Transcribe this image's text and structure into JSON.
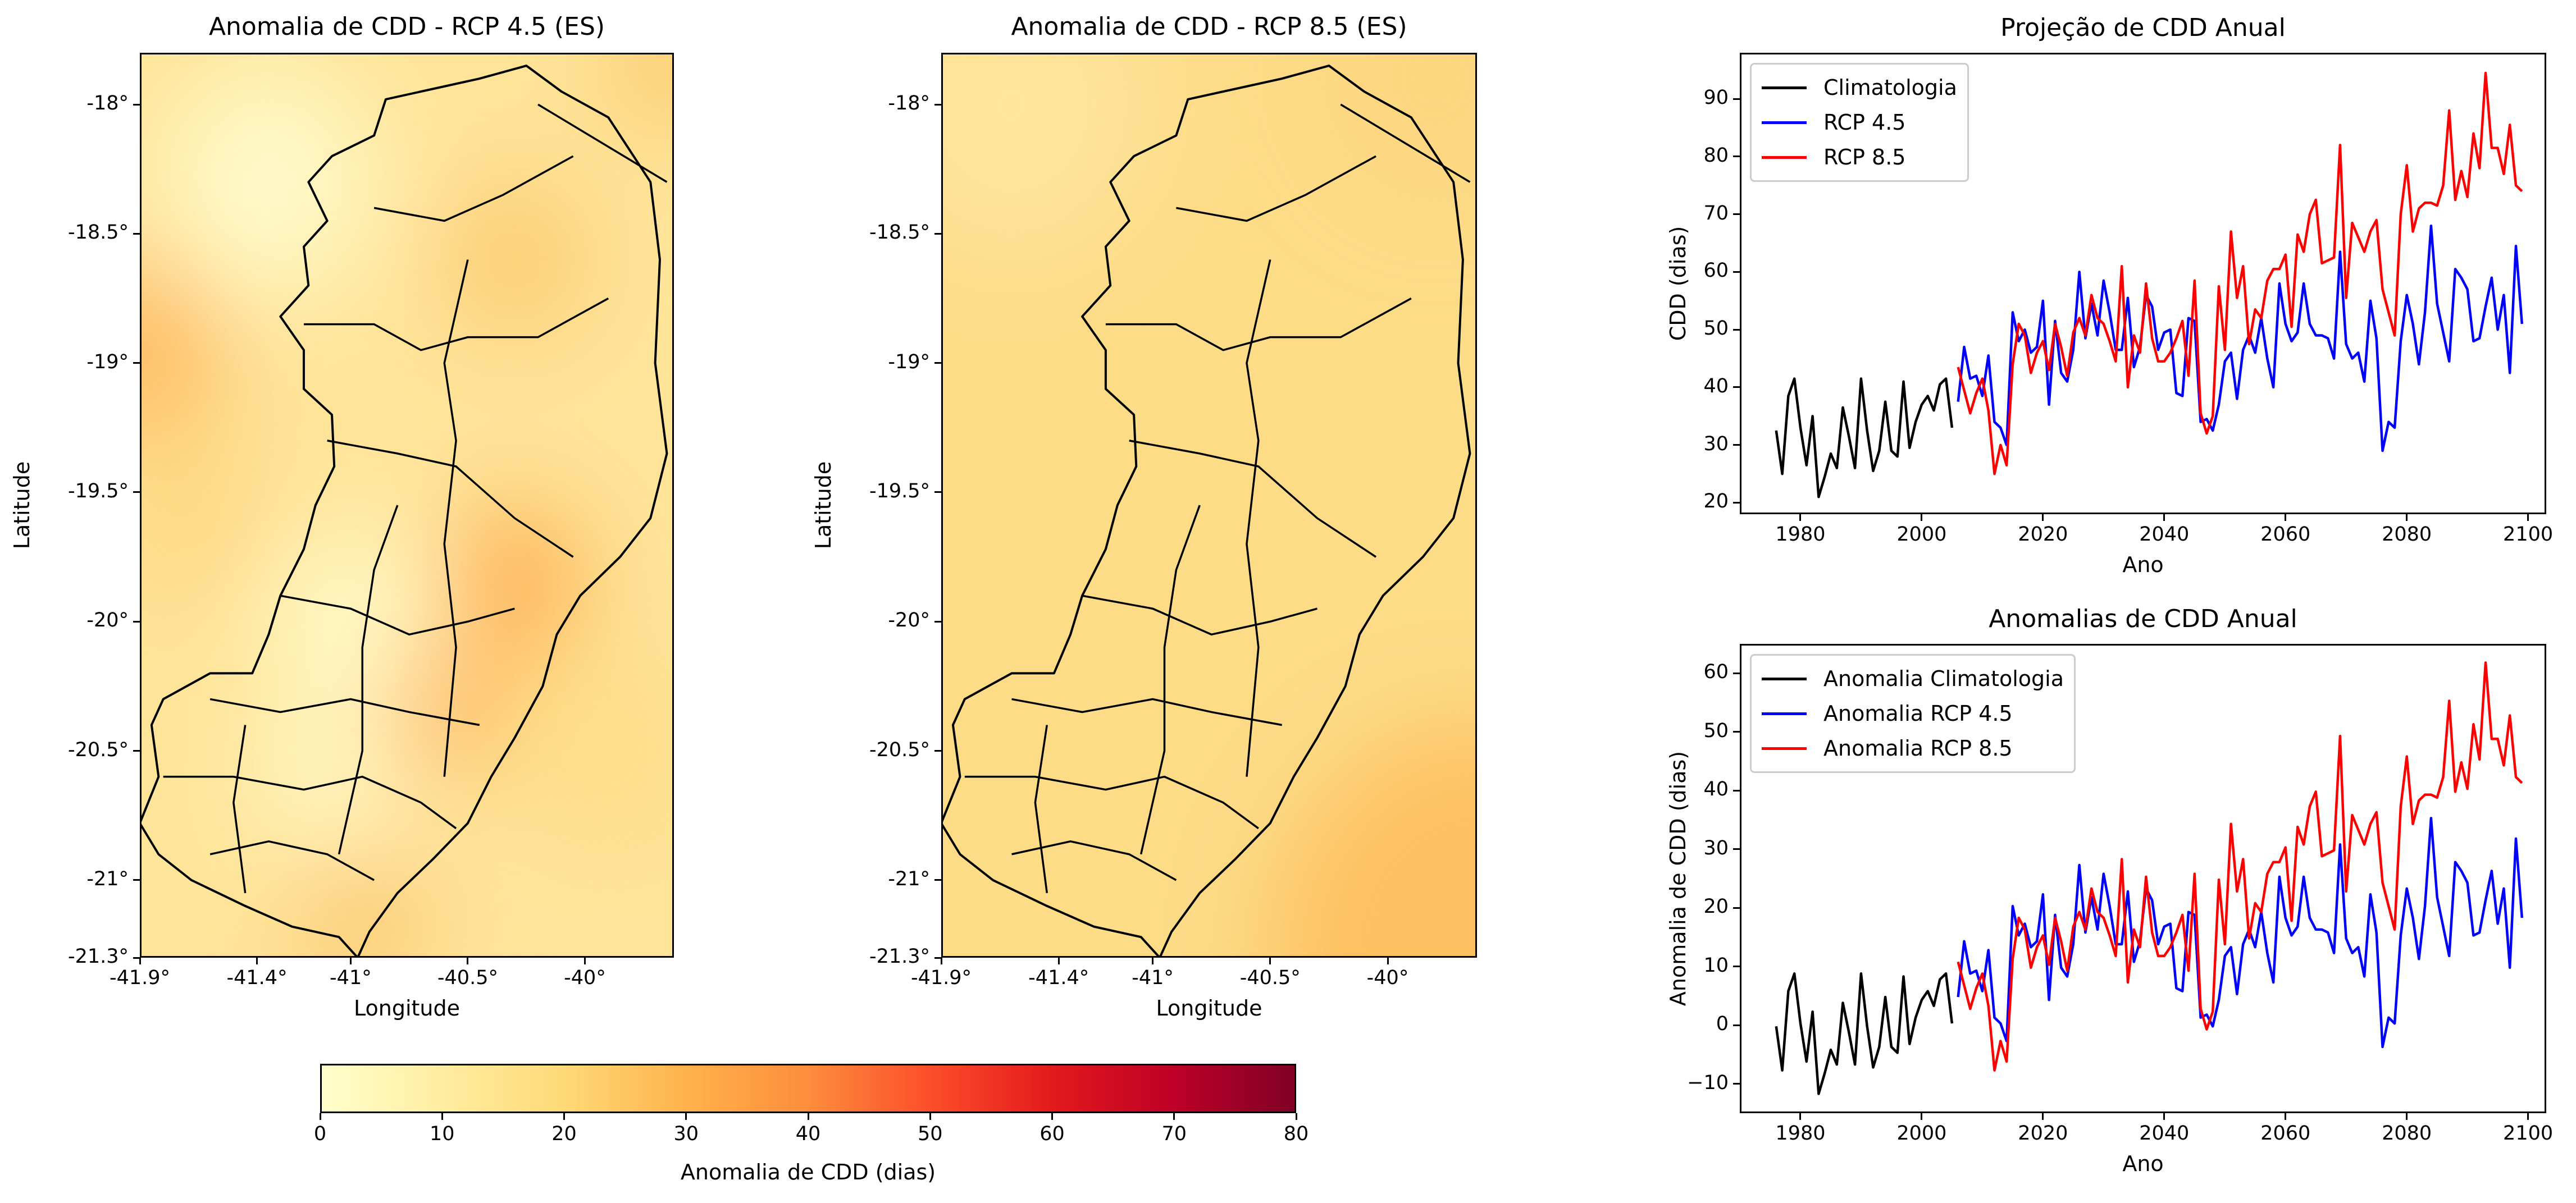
{
  "maps": [
    {
      "title": "Anomalia de CDD - RCP 4.5 (ES)",
      "xlabel": "Longitude",
      "ylabel": "Latitude",
      "scenario": "RCP 4.5"
    },
    {
      "title": "Anomalia de CDD - RCP 8.5 (ES)",
      "xlabel": "Longitude",
      "ylabel": "Latitude",
      "scenario": "RCP 8.5"
    }
  ],
  "map_axes": {
    "lon_range": [
      -41.9,
      -39.62
    ],
    "lat_range": [
      -21.3,
      -17.8
    ],
    "lon_ticks": [
      -41.9,
      -41.4,
      -41,
      -40.5,
      -40
    ],
    "lon_tick_labels": [
      "-41.9°",
      "-41.4°",
      "-41°",
      "-40.5°",
      "-40°"
    ],
    "lat_ticks": [
      -18,
      -18.5,
      -19,
      -19.5,
      -20,
      -20.5,
      -21,
      -21.3
    ],
    "lat_tick_labels": [
      "-18°",
      "-18.5°",
      "-19°",
      "-19.5°",
      "-20°",
      "-20.5°",
      "-21°",
      "-21.3°"
    ]
  },
  "colorbar": {
    "label": "Anomalia de CDD (dias)",
    "range": [
      0,
      80
    ],
    "ticks": [
      0,
      10,
      20,
      30,
      40,
      50,
      60,
      70,
      80
    ],
    "tick_labels": [
      "0",
      "10",
      "20",
      "30",
      "40",
      "50",
      "60",
      "70",
      "80"
    ],
    "colormap": [
      "#ffffcc",
      "#ffeda0",
      "#fed976",
      "#feb24c",
      "#fd8d3c",
      "#fc4e2a",
      "#e31a1c",
      "#bd0026",
      "#800026"
    ]
  },
  "chart_data": [
    {
      "type": "line",
      "title": "Projeção de CDD Anual",
      "xlabel": "Ano",
      "ylabel": "CDD (dias)",
      "xlim": [
        1970,
        2103
      ],
      "ylim": [
        18,
        98
      ],
      "xticks": [
        1980,
        2000,
        2020,
        2040,
        2060,
        2080,
        2100
      ],
      "xtick_labels": [
        "1980",
        "2000",
        "2020",
        "2040",
        "2060",
        "2080",
        "2100"
      ],
      "yticks": [
        20,
        30,
        40,
        50,
        60,
        70,
        80,
        90
      ],
      "ytick_labels": [
        "20",
        "30",
        "40",
        "50",
        "60",
        "70",
        "80",
        "90"
      ],
      "legend_position": "upper-left",
      "series": [
        {
          "name": "Climatologia",
          "color": "#000000",
          "x_start": 1976,
          "x_end": 2005,
          "values": [
            32.5,
            25,
            38.5,
            41.5,
            33,
            26.5,
            35,
            21,
            24.5,
            28.5,
            26,
            36.5,
            31.5,
            26,
            41.5,
            32.5,
            25.5,
            29,
            37.5,
            29,
            28,
            41,
            29.5,
            34,
            37,
            38.5,
            36,
            40.5,
            41.5,
            33
          ]
        },
        {
          "name": "RCP 4.5",
          "color": "#0000ff",
          "x_start": 2006,
          "x_end": 2099,
          "values": [
            37.5,
            47,
            41.5,
            42,
            38.5,
            45.5,
            34,
            33,
            30,
            53,
            48,
            50,
            46,
            47,
            55,
            37,
            51.5,
            42.5,
            41,
            46.5,
            60,
            48.5,
            54.5,
            49,
            58.5,
            53,
            46.5,
            46.5,
            55.5,
            43.5,
            47,
            56,
            54,
            46.5,
            49.5,
            50,
            39,
            38.5,
            52,
            51.5,
            34,
            34.5,
            32.5,
            37,
            44.5,
            46,
            38,
            46.5,
            49,
            46,
            52,
            45,
            40,
            58,
            51,
            48,
            49.5,
            58,
            51,
            49,
            49,
            48.5,
            45,
            63.5,
            47.5,
            45,
            46,
            41,
            55,
            48.5,
            29,
            34,
            33,
            48,
            56,
            51,
            44,
            53,
            68,
            54.5,
            49.5,
            44.5,
            60.5,
            59,
            57,
            48,
            48.5,
            54,
            59,
            50,
            56,
            42.5,
            64.5,
            51
          ]
        },
        {
          "name": "RCP 8.5",
          "color": "#ff0000",
          "x_start": 2006,
          "x_end": 2099,
          "values": [
            43.5,
            39.5,
            35.5,
            39,
            41.5,
            36,
            25,
            30,
            26.5,
            44,
            51,
            49,
            42.5,
            46,
            48,
            43,
            51,
            47,
            42,
            49.5,
            52,
            49,
            56,
            52,
            51,
            48,
            44.5,
            61,
            40,
            49,
            46,
            58,
            48.5,
            44.5,
            44.5,
            46,
            48.5,
            51.5,
            42,
            58.5,
            35.5,
            32,
            35,
            57.5,
            46.5,
            67,
            55.5,
            61,
            47.5,
            53.5,
            52,
            58.5,
            60.5,
            60.5,
            63,
            50.5,
            66.5,
            63.5,
            70,
            72.5,
            61.5,
            62,
            62.5,
            82,
            55.5,
            68.5,
            66,
            63.5,
            67,
            69,
            57,
            53,
            49,
            70,
            78.5,
            67,
            71,
            72,
            72,
            71.5,
            75,
            88,
            72.5,
            77.5,
            73,
            84,
            78,
            94.5,
            81.5,
            81.5,
            77,
            85.5,
            75,
            74
          ]
        }
      ]
    },
    {
      "type": "line",
      "title": "Anomalias de CDD Anual",
      "xlabel": "Ano",
      "ylabel": "Anomalia de CDD (dias)",
      "xlim": [
        1970,
        2103
      ],
      "ylim": [
        -15,
        65
      ],
      "xticks": [
        1980,
        2000,
        2020,
        2040,
        2060,
        2080,
        2100
      ],
      "xtick_labels": [
        "1980",
        "2000",
        "2020",
        "2040",
        "2060",
        "2080",
        "2100"
      ],
      "yticks": [
        -10,
        0,
        10,
        20,
        30,
        40,
        50,
        60
      ],
      "ytick_labels": [
        "−10",
        "0",
        "10",
        "20",
        "30",
        "40",
        "50",
        "60"
      ],
      "legend_position": "upper-left",
      "series": [
        {
          "name": "Anomalia Climatologia",
          "color": "#000000",
          "x_start": 1976,
          "x_end": 2005,
          "values": [
            -0.2,
            -7.7,
            5.8,
            8.8,
            0.3,
            -6.2,
            2.3,
            -11.7,
            -8.2,
            -4.2,
            -6.7,
            3.8,
            -1.2,
            -6.7,
            8.8,
            -0.2,
            -7.2,
            -3.7,
            4.8,
            -3.7,
            -4.7,
            8.3,
            -3.2,
            1.3,
            4.3,
            5.8,
            3.3,
            7.8,
            8.8,
            0.3
          ]
        },
        {
          "name": "Anomalia RCP 4.5",
          "color": "#0000ff",
          "x_start": 2006,
          "x_end": 2099,
          "values": [
            4.8,
            14.3,
            8.8,
            9.3,
            5.8,
            12.8,
            1.3,
            0.3,
            -2.7,
            20.3,
            15.3,
            17.3,
            13.3,
            14.3,
            22.3,
            4.3,
            18.8,
            9.8,
            8.3,
            13.8,
            27.3,
            15.8,
            21.8,
            16.3,
            25.8,
            20.3,
            13.8,
            13.8,
            22.8,
            10.8,
            14.3,
            23.3,
            21.3,
            13.8,
            16.8,
            17.3,
            6.3,
            5.8,
            19.3,
            18.8,
            1.3,
            1.8,
            -0.2,
            4.3,
            11.8,
            13.3,
            5.3,
            13.8,
            16.3,
            13.3,
            19.3,
            12.3,
            7.3,
            25.3,
            18.3,
            15.3,
            16.8,
            25.3,
            18.3,
            16.3,
            16.3,
            15.8,
            12.3,
            30.8,
            14.8,
            12.3,
            13.3,
            8.3,
            22.3,
            15.8,
            -3.7,
            1.3,
            0.3,
            15.3,
            23.3,
            18.3,
            11.3,
            20.3,
            35.3,
            21.8,
            16.8,
            11.8,
            27.8,
            26.3,
            24.3,
            15.3,
            15.8,
            21.3,
            26.3,
            17.3,
            23.3,
            9.8,
            31.8,
            18.3
          ]
        },
        {
          "name": "Anomalia RCP 8.5",
          "color": "#ff0000",
          "x_start": 2006,
          "x_end": 2099,
          "values": [
            10.8,
            6.8,
            2.8,
            6.3,
            8.8,
            3.3,
            -7.7,
            -2.7,
            -6.2,
            11.3,
            18.3,
            16.3,
            9.8,
            13.3,
            15.3,
            10.3,
            18.3,
            14.3,
            9.3,
            16.8,
            19.3,
            16.3,
            23.3,
            19.3,
            18.3,
            15.3,
            11.8,
            28.3,
            7.3,
            16.3,
            13.3,
            25.3,
            15.8,
            11.8,
            11.8,
            13.3,
            15.8,
            18.8,
            9.3,
            25.8,
            2.8,
            -0.7,
            2.3,
            24.8,
            13.8,
            34.3,
            22.8,
            28.3,
            14.8,
            20.8,
            19.3,
            25.8,
            27.8,
            27.8,
            30.3,
            17.8,
            33.8,
            30.8,
            37.3,
            39.8,
            28.8,
            29.3,
            29.8,
            49.3,
            22.8,
            35.8,
            33.3,
            30.8,
            34.3,
            36.3,
            24.3,
            20.3,
            16.3,
            37.3,
            45.8,
            34.3,
            38.3,
            39.3,
            39.3,
            38.8,
            42.3,
            55.3,
            39.8,
            44.8,
            40.3,
            51.3,
            45.3,
            61.8,
            48.8,
            48.8,
            44.3,
            52.8,
            42.3,
            41.3
          ]
        }
      ]
    }
  ]
}
